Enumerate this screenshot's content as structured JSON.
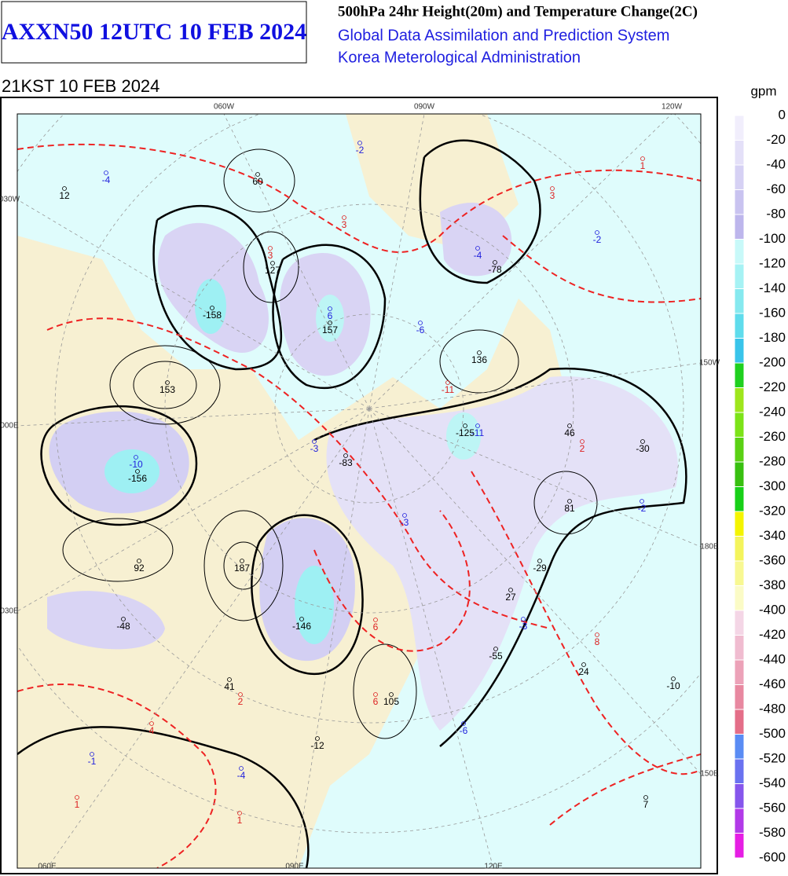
{
  "header": {
    "title": "AXXN50 12UTC 10 FEB 2024",
    "product": "500hPa 24hr Height(20m) and Temperature Change(2C)",
    "system": "Global Data Assimilation and Prediction System",
    "agency": "Korea Meterological Administration"
  },
  "valid_time": "21KST 10 FEB 2024",
  "legend": {
    "unit": "gpm",
    "levels": [
      0,
      -20,
      -40,
      -60,
      -80,
      -100,
      -120,
      -140,
      -160,
      -180,
      -200,
      -220,
      -240,
      -260,
      -280,
      -300,
      -320,
      -340,
      -360,
      -380,
      -400,
      -420,
      -440,
      -460,
      -480,
      -500,
      -520,
      -540,
      -560,
      -580,
      -600
    ]
  },
  "map": {
    "graticule_labels": [
      "060W",
      "090W",
      "120W",
      "030W",
      "150W",
      "000E",
      "180E",
      "030E",
      "150E",
      "060E",
      "090E",
      "120E"
    ],
    "labels": [
      12,
      -4,
      60,
      -2,
      1,
      3,
      3,
      -4,
      -78,
      -2,
      3,
      127,
      -158,
      6,
      157,
      -6,
      153,
      136,
      -11,
      -125,
      -11,
      46,
      2,
      -30,
      -3,
      -83,
      -10,
      -156,
      -2,
      81,
      -3,
      92,
      187,
      -29,
      27,
      -48,
      -146,
      6,
      -3,
      -55,
      8,
      24,
      -10,
      41,
      2,
      6,
      105,
      4,
      -6,
      -12,
      -1,
      -4,
      1,
      7,
      1
    ]
  }
}
